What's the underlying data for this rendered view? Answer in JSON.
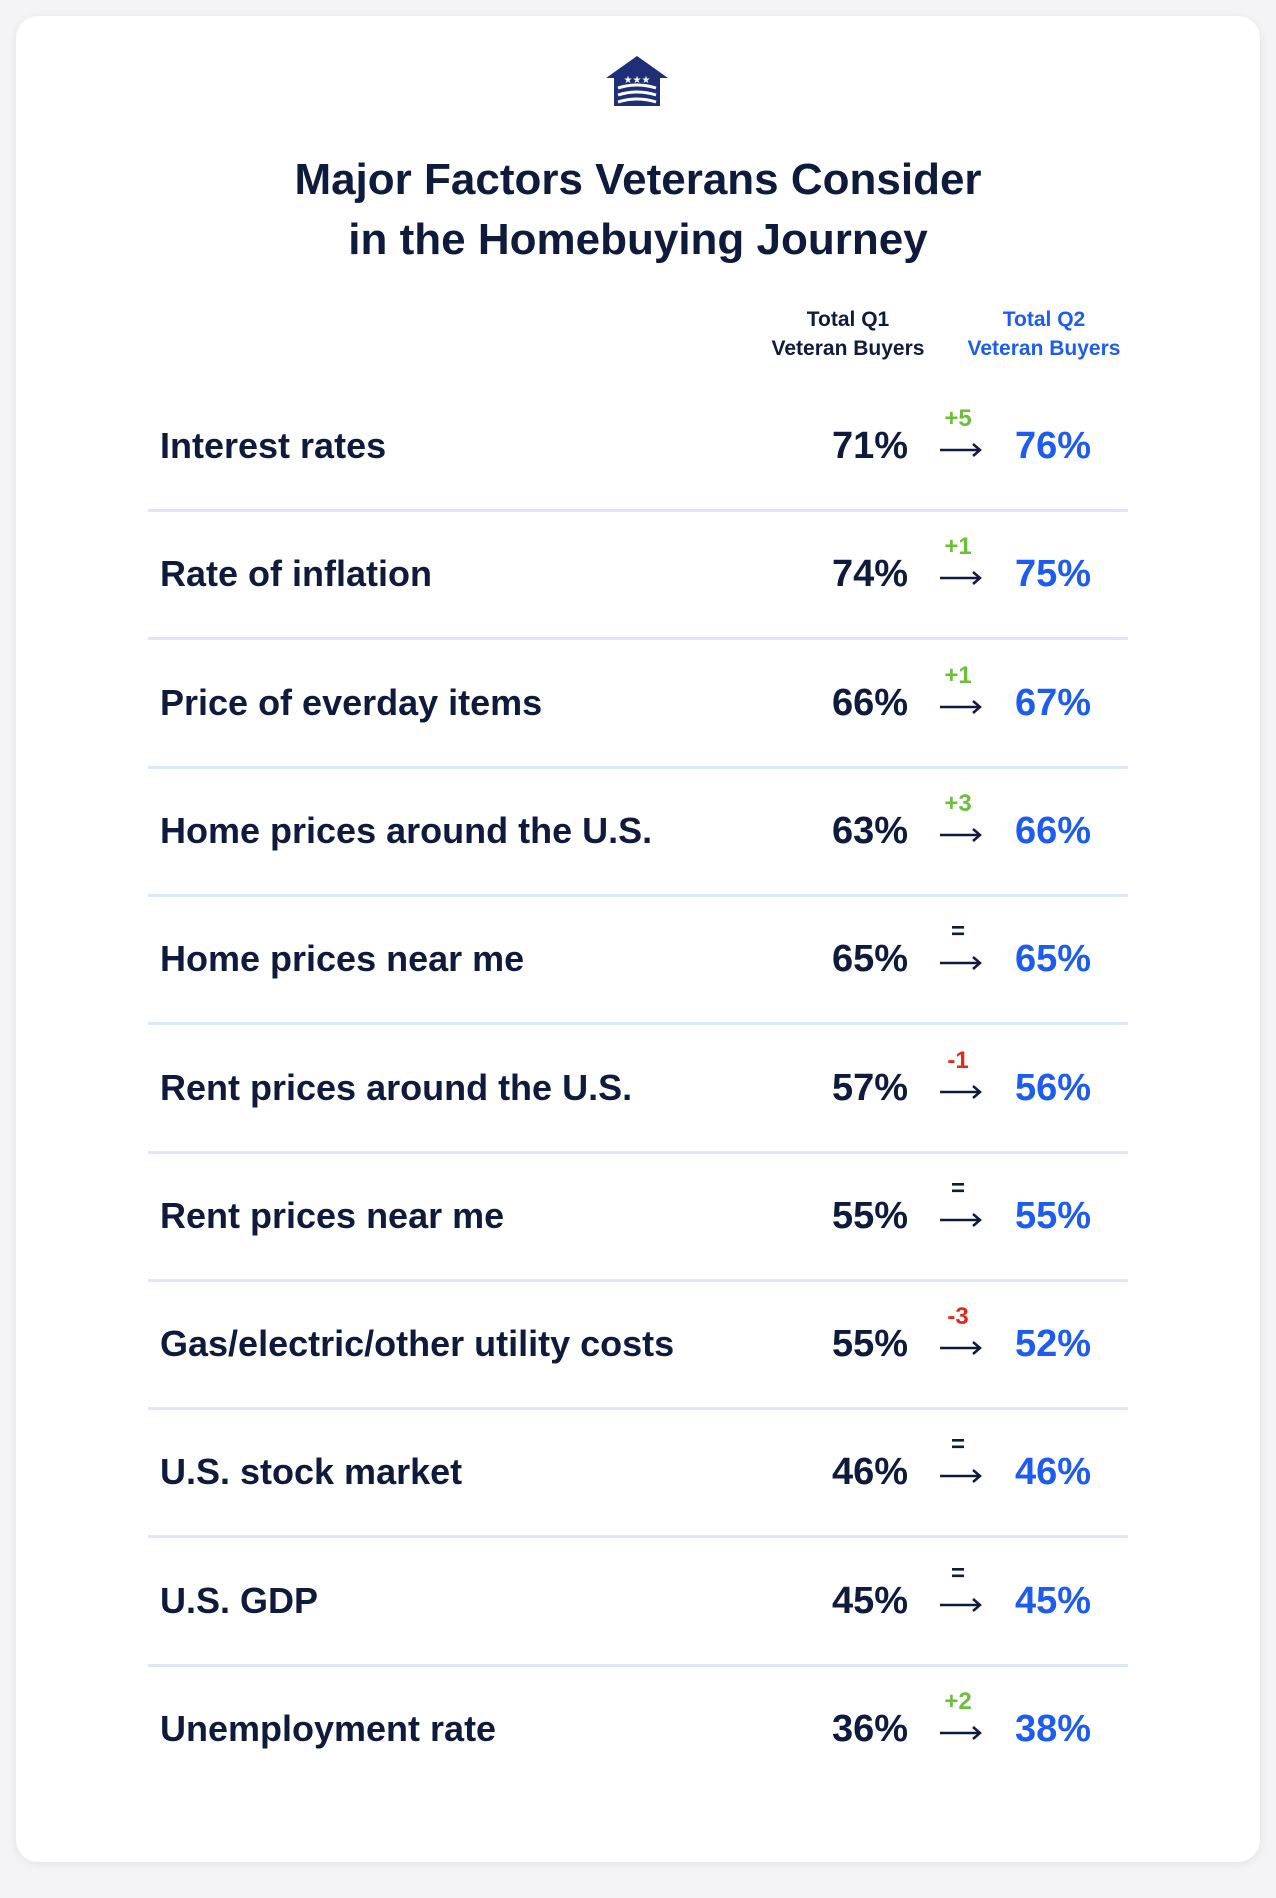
{
  "title_line1": "Major Factors Veterans Consider",
  "title_line2": "in the Homebuying Journey",
  "column_headers": {
    "q1_line1": "Total Q1",
    "q1_line2": "Veteran Buyers",
    "q2_line1": "Total Q2",
    "q2_line2": "Veteran Buyers"
  },
  "colors": {
    "navy": "#0e1b3d",
    "blue": "#1e5bf0",
    "increase": "#6bbf3b",
    "decrease": "#e02a1a",
    "divider": "#dfe6f7"
  },
  "chart_data": {
    "type": "table",
    "title": "Major Factors Veterans Consider in the Homebuying Journey",
    "columns": [
      "Total Q1 Veteran Buyers",
      "Total Q2 Veteran Buyers"
    ],
    "rows": [
      {
        "factor": "Interest rates",
        "q1": "71%",
        "change": "+5",
        "q2": "76%",
        "direction": "up"
      },
      {
        "factor": "Rate of inflation",
        "q1": "74%",
        "change": "+1",
        "q2": "75%",
        "direction": "up"
      },
      {
        "factor": "Price of everday items",
        "q1": "66%",
        "change": "+1",
        "q2": "67%",
        "direction": "up"
      },
      {
        "factor": "Home prices around the U.S.",
        "q1": "63%",
        "change": "+3",
        "q2": "66%",
        "direction": "up"
      },
      {
        "factor": "Home prices near me",
        "q1": "65%",
        "change": "=",
        "q2": "65%",
        "direction": "same"
      },
      {
        "factor": "Rent prices around the U.S.",
        "q1": "57%",
        "change": "-1",
        "q2": "56%",
        "direction": "down"
      },
      {
        "factor": "Rent prices near me",
        "q1": "55%",
        "change": "=",
        "q2": "55%",
        "direction": "same"
      },
      {
        "factor": "Gas/electric/other utility costs",
        "q1": "55%",
        "change": "-3",
        "q2": "52%",
        "direction": "down"
      },
      {
        "factor": "U.S. stock market",
        "q1": "46%",
        "change": "=",
        "q2": "46%",
        "direction": "same"
      },
      {
        "factor": "U.S. GDP",
        "q1": "45%",
        "change": "=",
        "q2": "45%",
        "direction": "same"
      },
      {
        "factor": "Unemployment rate",
        "q1": "36%",
        "change": "+2",
        "q2": "38%",
        "direction": "up"
      }
    ]
  }
}
